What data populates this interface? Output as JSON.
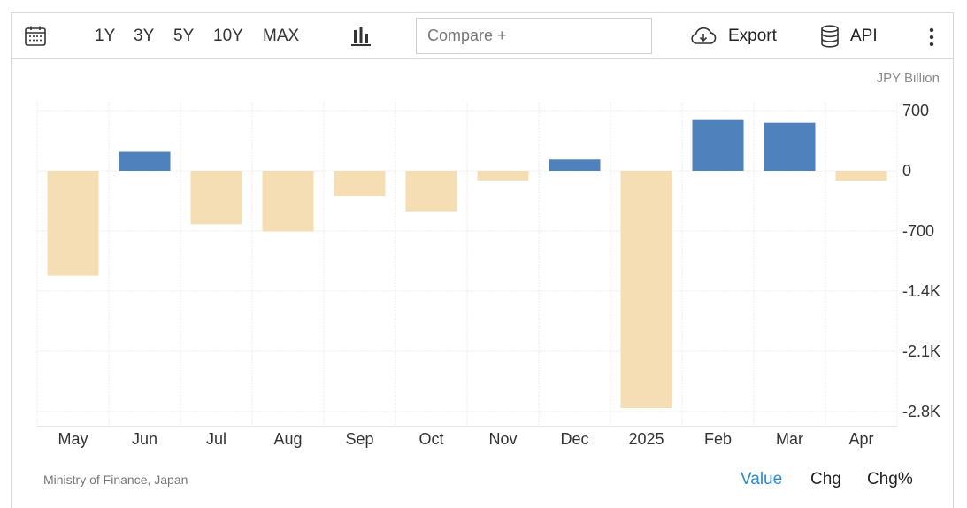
{
  "toolbar": {
    "calendar_icon": "calendar-icon",
    "ranges": [
      "1Y",
      "3Y",
      "5Y",
      "10Y",
      "MAX"
    ],
    "chart_type_icon": "bar-chart-icon",
    "compare_placeholder": "Compare +",
    "export_label": "Export",
    "export_icon": "cloud-download-icon",
    "api_label": "API",
    "api_icon": "database-icon",
    "more_icon": "vertical-dots-icon"
  },
  "unit_label": "JPY Billion",
  "source_label": "Ministry of Finance, Japan",
  "modes": {
    "value": "Value",
    "chg": "Chg",
    "chg_pct": "Chg%",
    "active": "value",
    "active_color": "#2a8ad4"
  },
  "colors": {
    "positive": "#4f81bd",
    "negative": "#f5deb3"
  },
  "chart_data": {
    "type": "bar",
    "categories": [
      "May",
      "Jun",
      "Jul",
      "Aug",
      "Sep",
      "Oct",
      "Nov",
      "Dec",
      "2025",
      "Feb",
      "Mar",
      "Apr"
    ],
    "values": [
      -1221,
      221,
      -621,
      -706,
      -295,
      -470,
      -112,
      131,
      -2759,
      590,
      559,
      -116
    ],
    "y_ticks": [
      700,
      0,
      -700,
      -1400,
      -2100,
      -2800
    ],
    "y_tick_labels": [
      "700",
      "0",
      "-700",
      "-1.4K",
      "-2.1K",
      "-2.8K"
    ],
    "ylim": [
      -2800,
      700
    ],
    "grid": true,
    "legend": "none"
  }
}
